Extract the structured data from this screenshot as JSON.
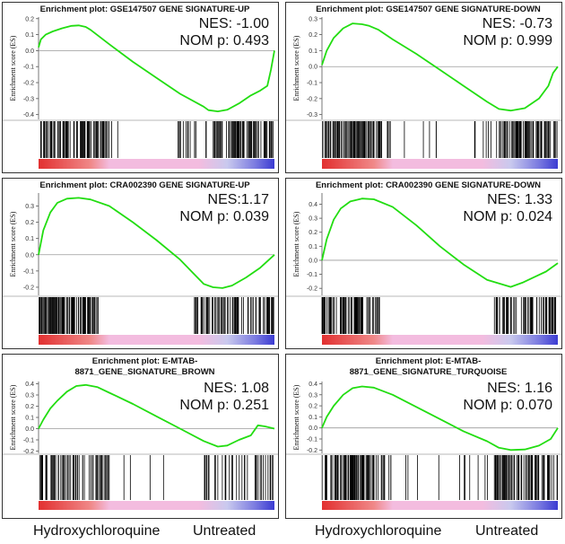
{
  "colors": {
    "curve": "#22dd11",
    "zero_line": "#9a9a9a",
    "hits": "#000000",
    "pos_red": "#e23030",
    "neutral_pink": "#f3bcdf",
    "neg_blue": "#3b3bd2",
    "border": "#333333"
  },
  "chart_data": [
    {
      "type": "line",
      "title_lines": [
        "Enrichment plot: GSE147507 GENE SIGNATURE-UP"
      ],
      "ylabel": "Enrichment score (ES)",
      "ylim": [
        -0.43,
        0.21
      ],
      "yticks": [
        -0.4,
        -0.3,
        -0.2,
        -0.1,
        0.0,
        0.1,
        0.2
      ],
      "ytick_labels": [
        "-0.4",
        "-0.3",
        "-0.2",
        "-0.1",
        "0.0",
        "0.1",
        "0.2"
      ],
      "nes_text": "NES: -1.00",
      "p_text": "NOM p: 0.493",
      "es_curve": [
        [
          0,
          0.02
        ],
        [
          0.01,
          0.07
        ],
        [
          0.03,
          0.1
        ],
        [
          0.06,
          0.12
        ],
        [
          0.1,
          0.14
        ],
        [
          0.14,
          0.155
        ],
        [
          0.17,
          0.158
        ],
        [
          0.2,
          0.148
        ],
        [
          0.22,
          0.13
        ],
        [
          0.3,
          0.04
        ],
        [
          0.4,
          -0.07
        ],
        [
          0.5,
          -0.17
        ],
        [
          0.6,
          -0.27
        ],
        [
          0.7,
          -0.35
        ],
        [
          0.72,
          -0.372
        ],
        [
          0.76,
          -0.38
        ],
        [
          0.8,
          -0.37
        ],
        [
          0.85,
          -0.33
        ],
        [
          0.9,
          -0.28
        ],
        [
          0.94,
          -0.25
        ],
        [
          0.97,
          -0.22
        ],
        [
          0.985,
          -0.12
        ],
        [
          1.0,
          0.0
        ]
      ],
      "hit_clusters": [
        [
          0.0,
          0.3,
          90
        ],
        [
          0.3,
          0.6,
          4
        ],
        [
          0.6,
          0.74,
          12
        ],
        [
          0.74,
          1.0,
          75
        ]
      ]
    },
    {
      "type": "line",
      "title_lines": [
        "Enrichment plot: GSE147507 GENE SIGNATURE-DOWN"
      ],
      "ylabel": "Enrichment score (ES)",
      "ylim": [
        -0.33,
        0.31
      ],
      "yticks": [
        -0.3,
        -0.2,
        -0.1,
        0.0,
        0.1,
        0.2,
        0.3
      ],
      "ytick_labels": [
        "-0.3",
        "-0.2",
        "-0.1",
        "0.0",
        "0.1",
        "0.2",
        "0.3"
      ],
      "nes_text": "NES: -0.73",
      "p_text": "NOM p: 0.999",
      "es_curve": [
        [
          0,
          0.01
        ],
        [
          0.02,
          0.1
        ],
        [
          0.05,
          0.18
        ],
        [
          0.09,
          0.24
        ],
        [
          0.13,
          0.27
        ],
        [
          0.17,
          0.265
        ],
        [
          0.2,
          0.255
        ],
        [
          0.24,
          0.23
        ],
        [
          0.3,
          0.17
        ],
        [
          0.4,
          0.08
        ],
        [
          0.5,
          -0.02
        ],
        [
          0.6,
          -0.12
        ],
        [
          0.7,
          -0.22
        ],
        [
          0.75,
          -0.265
        ],
        [
          0.8,
          -0.275
        ],
        [
          0.86,
          -0.26
        ],
        [
          0.92,
          -0.2
        ],
        [
          0.96,
          -0.12
        ],
        [
          0.98,
          -0.04
        ],
        [
          1.0,
          0.0
        ]
      ],
      "hit_clusters": [
        [
          0.0,
          0.3,
          90
        ],
        [
          0.3,
          0.6,
          5
        ],
        [
          0.6,
          0.74,
          6
        ],
        [
          0.74,
          1.0,
          80
        ]
      ]
    },
    {
      "type": "line",
      "title_lines": [
        "Enrichment plot: CRA002390 GENE SIGNATURE-UP"
      ],
      "ylabel": "Enrichment score (ES)",
      "ylim": [
        -0.25,
        0.38
      ],
      "yticks": [
        -0.2,
        -0.1,
        0.0,
        0.1,
        0.2,
        0.3
      ],
      "ytick_labels": [
        "-0.2",
        "-0.1",
        "0.0",
        "0.1",
        "0.2",
        "0.3"
      ],
      "nes_text": "NES:1.17",
      "p_text": "NOM p: 0.039",
      "es_curve": [
        [
          0,
          0.0
        ],
        [
          0.02,
          0.15
        ],
        [
          0.05,
          0.26
        ],
        [
          0.08,
          0.32
        ],
        [
          0.12,
          0.345
        ],
        [
          0.17,
          0.35
        ],
        [
          0.22,
          0.34
        ],
        [
          0.3,
          0.3
        ],
        [
          0.4,
          0.2
        ],
        [
          0.5,
          0.09
        ],
        [
          0.6,
          -0.03
        ],
        [
          0.66,
          -0.12
        ],
        [
          0.7,
          -0.18
        ],
        [
          0.74,
          -0.2
        ],
        [
          0.78,
          -0.205
        ],
        [
          0.82,
          -0.19
        ],
        [
          0.88,
          -0.14
        ],
        [
          0.94,
          -0.08
        ],
        [
          1.0,
          0.0
        ]
      ],
      "hit_clusters": [
        [
          0.0,
          0.26,
          110
        ],
        [
          0.66,
          1.0,
          80
        ]
      ]
    },
    {
      "type": "line",
      "title_lines": [
        "Enrichment plot: CRA002390 GENE SIGNATURE-DOWN"
      ],
      "ylabel": "Enrichment score (ES)",
      "ylim": [
        -0.25,
        0.48
      ],
      "yticks": [
        -0.2,
        -0.1,
        0.0,
        0.1,
        0.2,
        0.3,
        0.4
      ],
      "ytick_labels": [
        "-0.2",
        "-0.1",
        "0.0",
        "0.1",
        "0.2",
        "0.3",
        "0.4"
      ],
      "nes_text": "NES: 1.33",
      "p_text": "NOM p: 0.024",
      "es_curve": [
        [
          0,
          0.0
        ],
        [
          0.02,
          0.15
        ],
        [
          0.05,
          0.29
        ],
        [
          0.08,
          0.37
        ],
        [
          0.12,
          0.42
        ],
        [
          0.17,
          0.44
        ],
        [
          0.22,
          0.435
        ],
        [
          0.3,
          0.38
        ],
        [
          0.4,
          0.25
        ],
        [
          0.5,
          0.1
        ],
        [
          0.6,
          -0.03
        ],
        [
          0.7,
          -0.14
        ],
        [
          0.8,
          -0.19
        ],
        [
          0.85,
          -0.16
        ],
        [
          0.9,
          -0.12
        ],
        [
          0.95,
          -0.08
        ],
        [
          1.0,
          -0.02
        ]
      ],
      "hit_clusters": [
        [
          0.0,
          0.25,
          75
        ],
        [
          0.73,
          1.0,
          60
        ]
      ]
    },
    {
      "type": "line",
      "title_lines": [
        "Enrichment plot: E-MTAB-",
        "8871_GENE_SIGNATURE_BROWN"
      ],
      "ylabel": "Enrichment score (ES)",
      "ylim": [
        -0.22,
        0.42
      ],
      "yticks": [
        -0.2,
        -0.1,
        0.0,
        0.1,
        0.2,
        0.3,
        0.4
      ],
      "ytick_labels": [
        "-0.2",
        "-0.1",
        "0.0",
        "0.1",
        "0.2",
        "0.3",
        "0.4"
      ],
      "nes_text": "NES: 1.08",
      "p_text": "NOM p: 0.251",
      "es_curve": [
        [
          0,
          0.0
        ],
        [
          0.02,
          0.08
        ],
        [
          0.05,
          0.18
        ],
        [
          0.08,
          0.25
        ],
        [
          0.12,
          0.33
        ],
        [
          0.16,
          0.38
        ],
        [
          0.2,
          0.39
        ],
        [
          0.25,
          0.37
        ],
        [
          0.3,
          0.32
        ],
        [
          0.4,
          0.22
        ],
        [
          0.5,
          0.11
        ],
        [
          0.6,
          0.0
        ],
        [
          0.7,
          -0.11
        ],
        [
          0.76,
          -0.16
        ],
        [
          0.8,
          -0.15
        ],
        [
          0.85,
          -0.1
        ],
        [
          0.9,
          -0.06
        ],
        [
          0.93,
          0.03
        ],
        [
          0.96,
          0.02
        ],
        [
          1.0,
          0.0
        ]
      ],
      "hit_clusters": [
        [
          0.0,
          0.3,
          70
        ],
        [
          0.3,
          0.6,
          4
        ],
        [
          0.7,
          1.0,
          35
        ]
      ]
    },
    {
      "type": "line",
      "title_lines": [
        "Enrichment plot: E-MTAB-",
        "8871_GENE_SIGNATURE_TURQUOISE"
      ],
      "ylabel": "Enrichment score (ES)",
      "ylim": [
        -0.23,
        0.42
      ],
      "yticks": [
        -0.2,
        -0.1,
        0.0,
        0.1,
        0.2,
        0.3,
        0.4
      ],
      "ytick_labels": [
        "-0.2",
        "-0.1",
        "0.0",
        "0.1",
        "0.2",
        "0.3",
        "0.4"
      ],
      "nes_text": "NES: 1.16",
      "p_text": "NOM p: 0.070",
      "es_curve": [
        [
          0,
          0.0
        ],
        [
          0.02,
          0.1
        ],
        [
          0.05,
          0.2
        ],
        [
          0.09,
          0.3
        ],
        [
          0.13,
          0.36
        ],
        [
          0.17,
          0.375
        ],
        [
          0.22,
          0.365
        ],
        [
          0.3,
          0.3
        ],
        [
          0.4,
          0.19
        ],
        [
          0.5,
          0.08
        ],
        [
          0.6,
          -0.03
        ],
        [
          0.7,
          -0.12
        ],
        [
          0.75,
          -0.18
        ],
        [
          0.8,
          -0.2
        ],
        [
          0.86,
          -0.195
        ],
        [
          0.92,
          -0.16
        ],
        [
          0.97,
          -0.1
        ],
        [
          1.0,
          0.0
        ]
      ],
      "hit_clusters": [
        [
          0.0,
          0.3,
          90
        ],
        [
          0.3,
          0.6,
          5
        ],
        [
          0.6,
          0.72,
          6
        ],
        [
          0.72,
          1.0,
          75
        ]
      ]
    }
  ],
  "bottom_labels": {
    "left_pos": "Hydroxychloroquine",
    "left_neg": "Untreated",
    "right_pos": "Hydroxychloroquine",
    "right_neg": "Untreated"
  }
}
